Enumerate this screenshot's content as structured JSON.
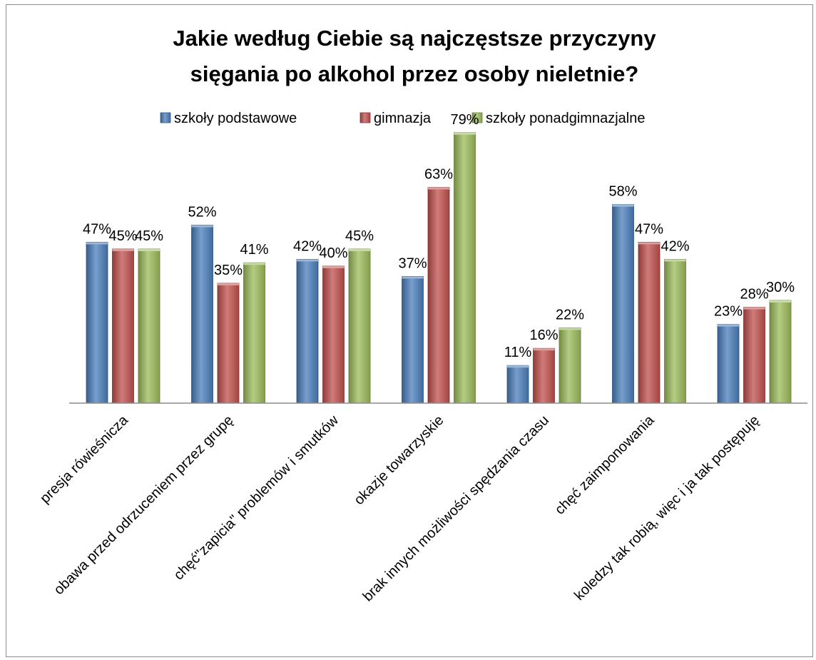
{
  "chart_data": {
    "type": "bar",
    "title_lines": [
      "Jakie według Ciebie są najczęstsze przyczyny",
      "sięgania po alkohol przez osoby nieletnie?"
    ],
    "legend_position": "top",
    "grid": false,
    "ylim": [
      0,
      80
    ],
    "categories": [
      "presja rówieśnicza",
      "obawa przed odrzuceniem przez grupę",
      "chęć\"zapicia\" problemów i smutków",
      "okazje towarzyskie",
      "brak innych możliwości spędzania czasu",
      "chęć zaimponowania",
      "koledzy tak robią, więc i ja tak postępuję"
    ],
    "series": [
      {
        "name": "szkoły podstawowe",
        "color": "#4a7ebb",
        "values": [
          47,
          52,
          42,
          37,
          11,
          58,
          23
        ]
      },
      {
        "name": "gimnazja",
        "color": "#c0504d",
        "values": [
          45,
          35,
          40,
          63,
          16,
          47,
          28
        ]
      },
      {
        "name": "szkoły ponadgimnazjalne",
        "color": "#9bbb59",
        "values": [
          45,
          41,
          45,
          79,
          22,
          42,
          30
        ]
      }
    ],
    "value_suffix": "%"
  }
}
